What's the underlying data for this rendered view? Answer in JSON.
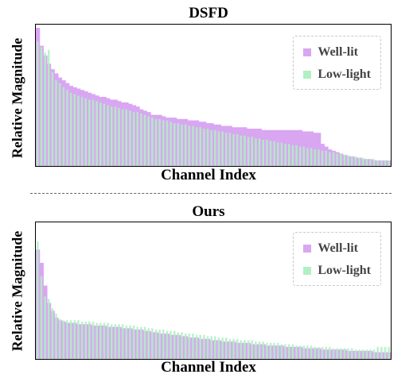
{
  "colors": {
    "well_lit": "#d9a6f2",
    "low_light": "#b0f0c2"
  },
  "chart_data": [
    {
      "type": "bar",
      "title": "DSFD",
      "xlabel": "Channel Index",
      "ylabel": "Relative Magnitude",
      "ylim": [
        0,
        1
      ],
      "legend_position": "top-right",
      "series": [
        {
          "name": "Well-lit",
          "color": "#d9a6f2",
          "values": [
            1.0,
            0.87,
            0.8,
            0.74,
            0.7,
            0.67,
            0.64,
            0.62,
            0.6,
            0.58,
            0.57,
            0.56,
            0.55,
            0.54,
            0.53,
            0.52,
            0.51,
            0.5,
            0.5,
            0.49,
            0.48,
            0.48,
            0.47,
            0.46,
            0.46,
            0.45,
            0.44,
            0.43,
            0.41,
            0.4,
            0.39,
            0.37,
            0.37,
            0.37,
            0.36,
            0.35,
            0.35,
            0.35,
            0.34,
            0.34,
            0.34,
            0.33,
            0.33,
            0.33,
            0.32,
            0.32,
            0.31,
            0.31,
            0.3,
            0.3,
            0.29,
            0.29,
            0.29,
            0.28,
            0.28,
            0.28,
            0.28,
            0.27,
            0.27,
            0.27,
            0.27,
            0.26,
            0.26,
            0.26,
            0.26,
            0.26,
            0.26,
            0.26,
            0.26,
            0.26,
            0.26,
            0.26,
            0.25,
            0.25,
            0.25,
            0.24,
            0.24,
            0.16,
            0.14,
            0.12,
            0.11,
            0.1,
            0.09,
            0.08,
            0.07,
            0.07,
            0.06,
            0.06,
            0.05,
            0.05,
            0.05,
            0.04,
            0.04,
            0.04,
            0.04,
            0.04
          ]
        },
        {
          "name": "Low-light",
          "color": "#b0f0c2",
          "values": [
            0.9,
            0.86,
            0.82,
            0.84,
            0.68,
            0.62,
            0.6,
            0.57,
            0.55,
            0.53,
            0.52,
            0.51,
            0.5,
            0.49,
            0.48,
            0.48,
            0.47,
            0.46,
            0.45,
            0.44,
            0.43,
            0.43,
            0.42,
            0.41,
            0.41,
            0.4,
            0.39,
            0.39,
            0.38,
            0.37,
            0.36,
            0.35,
            0.34,
            0.34,
            0.33,
            0.33,
            0.32,
            0.31,
            0.31,
            0.3,
            0.3,
            0.29,
            0.29,
            0.28,
            0.28,
            0.27,
            0.27,
            0.26,
            0.26,
            0.25,
            0.25,
            0.24,
            0.24,
            0.23,
            0.23,
            0.22,
            0.22,
            0.21,
            0.21,
            0.2,
            0.2,
            0.19,
            0.19,
            0.18,
            0.18,
            0.17,
            0.17,
            0.16,
            0.16,
            0.15,
            0.15,
            0.14,
            0.14,
            0.13,
            0.13,
            0.12,
            0.12,
            0.11,
            0.11,
            0.1,
            0.1,
            0.09,
            0.09,
            0.08,
            0.08,
            0.07,
            0.07,
            0.06,
            0.06,
            0.05,
            0.05,
            0.05,
            0.04,
            0.04,
            0.04,
            0.04
          ]
        }
      ]
    },
    {
      "type": "bar",
      "title": "Ours",
      "xlabel": "Channel Index",
      "ylabel": "Relative Magnitude",
      "ylim": [
        0,
        1
      ],
      "legend_position": "top-right",
      "series": [
        {
          "name": "Well-lit",
          "color": "#d9a6f2",
          "values": [
            0.82,
            0.72,
            0.55,
            0.42,
            0.36,
            0.31,
            0.29,
            0.28,
            0.27,
            0.27,
            0.27,
            0.26,
            0.26,
            0.26,
            0.26,
            0.25,
            0.25,
            0.25,
            0.25,
            0.24,
            0.24,
            0.24,
            0.24,
            0.23,
            0.23,
            0.23,
            0.22,
            0.22,
            0.22,
            0.21,
            0.21,
            0.2,
            0.2,
            0.19,
            0.19,
            0.19,
            0.18,
            0.18,
            0.18,
            0.17,
            0.17,
            0.16,
            0.16,
            0.16,
            0.15,
            0.15,
            0.15,
            0.14,
            0.14,
            0.14,
            0.13,
            0.13,
            0.13,
            0.13,
            0.12,
            0.12,
            0.12,
            0.12,
            0.11,
            0.11,
            0.11,
            0.11,
            0.1,
            0.1,
            0.1,
            0.1,
            0.1,
            0.09,
            0.09,
            0.09,
            0.09,
            0.09,
            0.08,
            0.08,
            0.08,
            0.08,
            0.08,
            0.07,
            0.07,
            0.07,
            0.07,
            0.07,
            0.07,
            0.07,
            0.06,
            0.06,
            0.06,
            0.06,
            0.06,
            0.06,
            0.06,
            0.05,
            0.05,
            0.05,
            0.05,
            0.05
          ]
        },
        {
          "name": "Low-light",
          "color": "#b0f0c2",
          "values": [
            0.88,
            0.62,
            0.47,
            0.45,
            0.38,
            0.34,
            0.3,
            0.29,
            0.29,
            0.29,
            0.29,
            0.29,
            0.28,
            0.28,
            0.28,
            0.28,
            0.27,
            0.27,
            0.27,
            0.27,
            0.26,
            0.26,
            0.26,
            0.26,
            0.25,
            0.25,
            0.25,
            0.24,
            0.24,
            0.24,
            0.23,
            0.23,
            0.22,
            0.22,
            0.22,
            0.21,
            0.21,
            0.21,
            0.2,
            0.2,
            0.19,
            0.19,
            0.19,
            0.18,
            0.18,
            0.18,
            0.17,
            0.17,
            0.17,
            0.16,
            0.16,
            0.16,
            0.15,
            0.15,
            0.15,
            0.14,
            0.14,
            0.14,
            0.14,
            0.13,
            0.13,
            0.13,
            0.12,
            0.12,
            0.12,
            0.12,
            0.11,
            0.11,
            0.11,
            0.11,
            0.1,
            0.1,
            0.1,
            0.1,
            0.1,
            0.09,
            0.09,
            0.09,
            0.09,
            0.09,
            0.08,
            0.08,
            0.08,
            0.08,
            0.08,
            0.08,
            0.07,
            0.07,
            0.07,
            0.07,
            0.07,
            0.07,
            0.09,
            0.09,
            0.09,
            0.09
          ]
        }
      ]
    }
  ]
}
